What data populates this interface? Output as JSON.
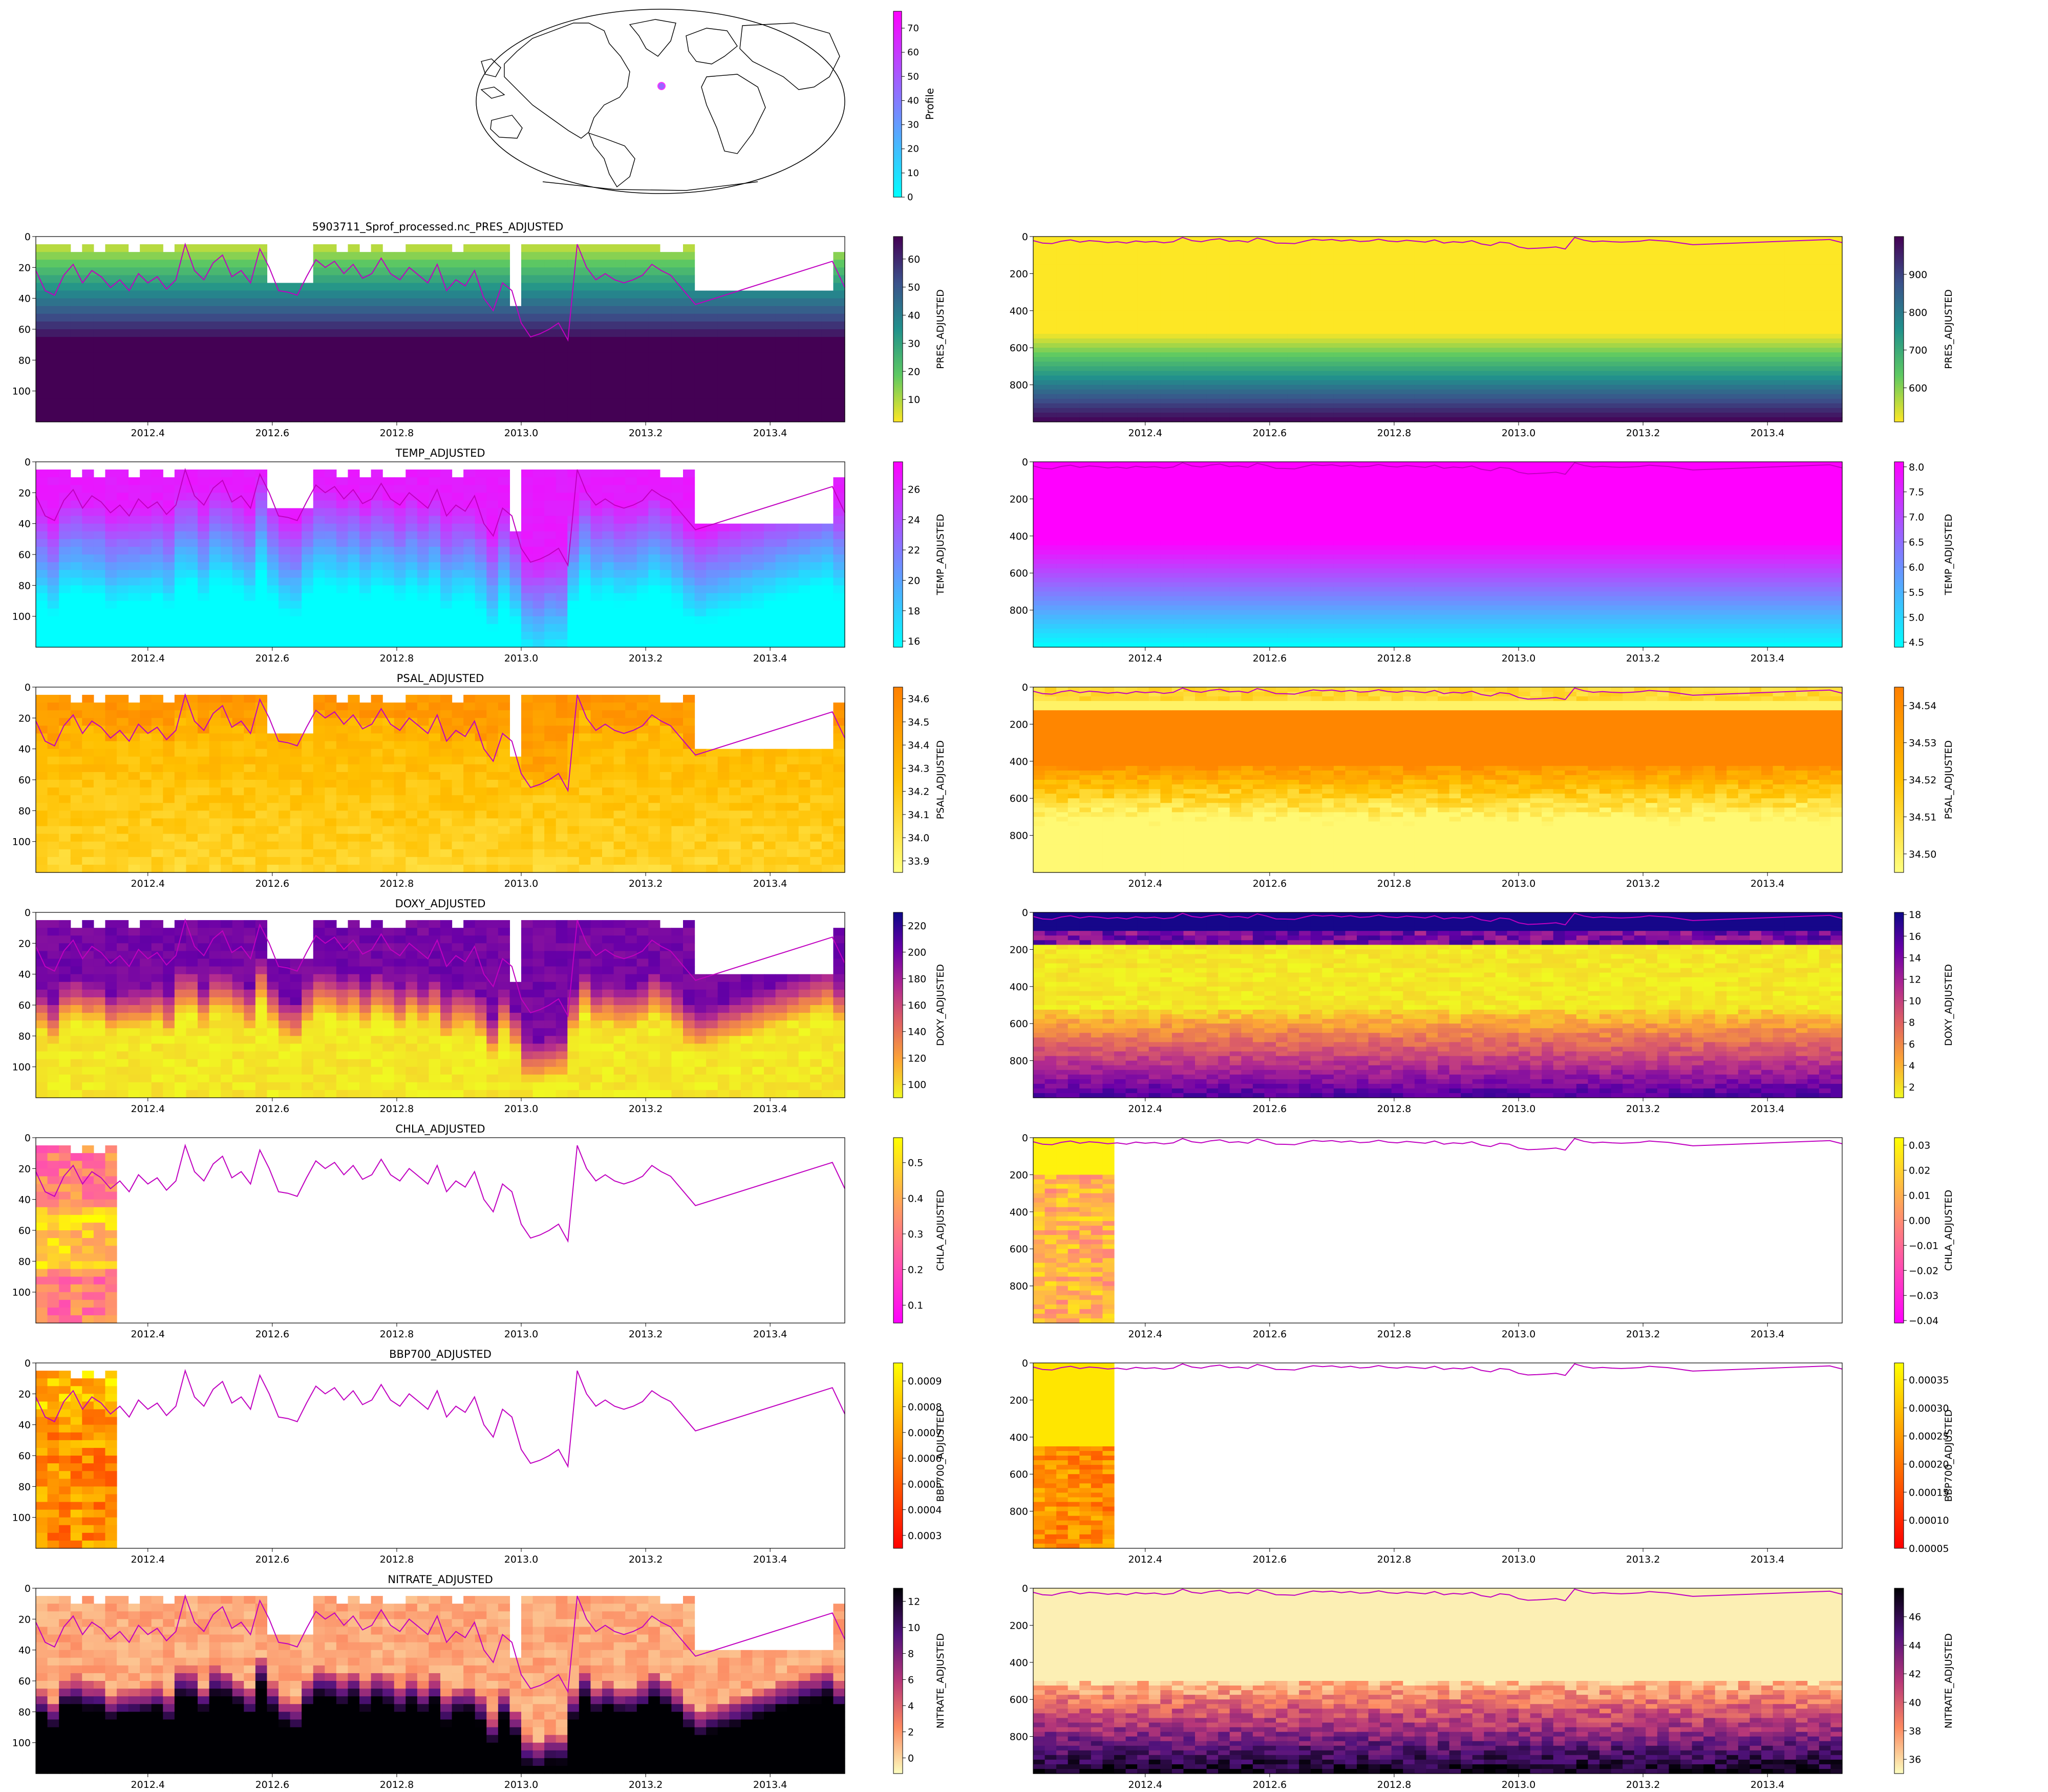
{
  "figure_title": "5903711_Sprof_processed.nc_PRES_ADJUSTED",
  "map": {
    "colorbar_label": "Profile",
    "colorbar_ticks": [
      0,
      10,
      20,
      30,
      40,
      50,
      60,
      70
    ],
    "colorbar_max": 77,
    "colorbar_colors": [
      "#00ffff",
      "#ff00ff"
    ],
    "float_location": {
      "lon": -171,
      "lat": 20
    }
  },
  "chart_data": [
    {
      "type": "heatmap",
      "title": "",
      "xlabel": "",
      "ylabel": "",
      "cbar_label": "PRES_ADJUSTED",
      "var": "PRES",
      "side": "left",
      "xlim": [
        2012.22,
        2013.52
      ],
      "ylim": [
        120,
        0
      ],
      "xticks": [
        "2012.4",
        "2012.6",
        "2012.8",
        "2013.0",
        "2013.2",
        "2013.4"
      ],
      "yticks": [
        "0",
        "20",
        "40",
        "60",
        "80",
        "100"
      ],
      "cbar_ticks": [
        "10",
        "20",
        "30",
        "40",
        "50",
        "60"
      ],
      "cbar_range": [
        2,
        68
      ],
      "colormap": [
        "#fde725",
        "#5ec962",
        "#21918c",
        "#3b528b",
        "#440154"
      ]
    },
    {
      "type": "heatmap",
      "title": "",
      "xlabel": "",
      "ylabel": "",
      "cbar_label": "PRES_ADJUSTED",
      "var": "PRES",
      "side": "right",
      "xlim": [
        2012.22,
        2013.52
      ],
      "ylim": [
        1000,
        0
      ],
      "xticks": [
        "2012.4",
        "2012.6",
        "2012.8",
        "2013.0",
        "2013.2",
        "2013.4"
      ],
      "yticks": [
        "0",
        "200",
        "400",
        "600",
        "800"
      ],
      "cbar_ticks": [
        "600",
        "700",
        "800",
        "900"
      ],
      "cbar_range": [
        510,
        1000
      ],
      "colormap": [
        "#fde725",
        "#5ec962",
        "#21918c",
        "#3b528b",
        "#440154"
      ]
    },
    {
      "type": "heatmap",
      "title": "TEMP_ADJUSTED",
      "xlabel": "",
      "ylabel": "",
      "cbar_label": "TEMP_ADJUSTED",
      "var": "TEMP",
      "side": "left",
      "xlim": [
        2012.22,
        2013.52
      ],
      "ylim": [
        120,
        0
      ],
      "xticks": [
        "2012.4",
        "2012.6",
        "2012.8",
        "2013.0",
        "2013.2",
        "2013.4"
      ],
      "yticks": [
        "0",
        "20",
        "40",
        "60",
        "80",
        "100"
      ],
      "cbar_ticks": [
        "16",
        "18",
        "20",
        "22",
        "24",
        "26"
      ],
      "cbar_range": [
        15.6,
        27.8
      ],
      "colormap": [
        "#00ffff",
        "#7f7fff",
        "#ff00ff"
      ]
    },
    {
      "type": "heatmap",
      "title": "",
      "xlabel": "",
      "ylabel": "",
      "cbar_label": "TEMP_ADJUSTED",
      "var": "TEMP",
      "side": "right",
      "xlim": [
        2012.22,
        2013.52
      ],
      "ylim": [
        1000,
        0
      ],
      "xticks": [
        "2012.4",
        "2012.6",
        "2012.8",
        "2013.0",
        "2013.2",
        "2013.4"
      ],
      "yticks": [
        "0",
        "200",
        "400",
        "600",
        "800"
      ],
      "cbar_ticks": [
        "4.5",
        "5.0",
        "5.5",
        "6.0",
        "6.5",
        "7.0",
        "7.5",
        "8.0"
      ],
      "cbar_range": [
        4.4,
        8.1
      ],
      "colormap": [
        "#00ffff",
        "#7f7fff",
        "#ff00ff"
      ]
    },
    {
      "type": "heatmap",
      "title": "PSAL_ADJUSTED",
      "xlabel": "",
      "ylabel": "",
      "cbar_label": "PSAL_ADJUSTED",
      "var": "PSAL",
      "side": "left",
      "xlim": [
        2012.22,
        2013.52
      ],
      "ylim": [
        120,
        0
      ],
      "xticks": [
        "2012.4",
        "2012.6",
        "2012.8",
        "2013.0",
        "2013.2",
        "2013.4"
      ],
      "yticks": [
        "0",
        "20",
        "40",
        "60",
        "80",
        "100"
      ],
      "cbar_ticks": [
        "33.9",
        "34.0",
        "34.1",
        "34.2",
        "34.3",
        "34.4",
        "34.5",
        "34.6"
      ],
      "cbar_range": [
        33.85,
        34.65
      ],
      "colormap": [
        "#ffff80",
        "#ffc000",
        "#ff8000"
      ]
    },
    {
      "type": "heatmap",
      "title": "",
      "xlabel": "",
      "ylabel": "",
      "cbar_label": "PSAL_ADJUSTED",
      "var": "PSAL",
      "side": "right",
      "xlim": [
        2012.22,
        2013.52
      ],
      "ylim": [
        1000,
        0
      ],
      "xticks": [
        "2012.4",
        "2012.6",
        "2012.8",
        "2013.0",
        "2013.2",
        "2013.4"
      ],
      "yticks": [
        "0",
        "200",
        "400",
        "600",
        "800"
      ],
      "cbar_ticks": [
        "34.50",
        "34.51",
        "34.52",
        "34.53",
        "34.54"
      ],
      "cbar_range": [
        34.495,
        34.545
      ],
      "colormap": [
        "#ffff80",
        "#ffc000",
        "#ff8000"
      ]
    },
    {
      "type": "heatmap",
      "title": "DOXY_ADJUSTED",
      "xlabel": "",
      "ylabel": "",
      "cbar_label": "DOXY_ADJUSTED",
      "var": "DOXY",
      "side": "left",
      "xlim": [
        2012.22,
        2013.52
      ],
      "ylim": [
        120,
        0
      ],
      "xticks": [
        "2012.4",
        "2012.6",
        "2012.8",
        "2013.0",
        "2013.2",
        "2013.4"
      ],
      "yticks": [
        "0",
        "20",
        "40",
        "60",
        "80",
        "100"
      ],
      "cbar_ticks": [
        "100",
        "120",
        "140",
        "160",
        "180",
        "200",
        "220"
      ],
      "cbar_range": [
        90,
        230
      ],
      "colormap": [
        "#f0f921",
        "#fca636",
        "#e16462",
        "#b12a90",
        "#6a00a8",
        "#0d0887"
      ]
    },
    {
      "type": "heatmap",
      "title": "",
      "xlabel": "",
      "ylabel": "",
      "cbar_label": "DOXY_ADJUSTED",
      "var": "DOXY",
      "side": "right",
      "xlim": [
        2012.22,
        2013.52
      ],
      "ylim": [
        1000,
        0
      ],
      "xticks": [
        "2012.4",
        "2012.6",
        "2012.8",
        "2013.0",
        "2013.2",
        "2013.4"
      ],
      "yticks": [
        "0",
        "200",
        "400",
        "600",
        "800"
      ],
      "cbar_ticks": [
        "2",
        "4",
        "6",
        "8",
        "10",
        "12",
        "14",
        "16",
        "18"
      ],
      "cbar_range": [
        1,
        18.2
      ],
      "colormap": [
        "#f0f921",
        "#fca636",
        "#e16462",
        "#b12a90",
        "#6a00a8",
        "#0d0887"
      ]
    },
    {
      "type": "heatmap",
      "title": "CHLA_ADJUSTED",
      "xlabel": "",
      "ylabel": "",
      "cbar_label": "CHLA_ADJUSTED",
      "var": "CHLA",
      "side": "left",
      "xlim": [
        2012.22,
        2013.52
      ],
      "ylim": [
        120,
        0
      ],
      "xticks": [
        "2012.4",
        "2012.6",
        "2012.8",
        "2013.0",
        "2013.2",
        "2013.4"
      ],
      "yticks": [
        "0",
        "20",
        "40",
        "60",
        "80",
        "100"
      ],
      "cbar_ticks": [
        "0.1",
        "0.2",
        "0.3",
        "0.4",
        "0.5"
      ],
      "cbar_range": [
        0.05,
        0.57
      ],
      "colormap": [
        "#ff00ff",
        "#ff7f7f",
        "#ffff00"
      ]
    },
    {
      "type": "heatmap",
      "title": "",
      "xlabel": "",
      "ylabel": "",
      "cbar_label": "CHLA_ADJUSTED",
      "var": "CHLA",
      "side": "right",
      "xlim": [
        2012.22,
        2013.52
      ],
      "ylim": [
        1000,
        0
      ],
      "xticks": [
        "2012.4",
        "2012.6",
        "2012.8",
        "2013.0",
        "2013.2",
        "2013.4"
      ],
      "yticks": [
        "0",
        "200",
        "400",
        "600",
        "800"
      ],
      "cbar_ticks": [
        "−0.04",
        "−0.03",
        "−0.02",
        "−0.01",
        "0.00",
        "0.01",
        "0.02",
        "0.03"
      ],
      "cbar_range": [
        -0.041,
        0.033
      ],
      "colormap": [
        "#ff00ff",
        "#ff7f7f",
        "#ffff00"
      ]
    },
    {
      "type": "heatmap",
      "title": "BBP700_ADJUSTED",
      "xlabel": "",
      "ylabel": "",
      "cbar_label": "BBP700_ADJUSTED",
      "var": "BBP",
      "side": "left",
      "xlim": [
        2012.22,
        2013.52
      ],
      "ylim": [
        120,
        0
      ],
      "xticks": [
        "2012.4",
        "2012.6",
        "2012.8",
        "2013.0",
        "2013.2",
        "2013.4"
      ],
      "yticks": [
        "0",
        "20",
        "40",
        "60",
        "80",
        "100"
      ],
      "cbar_ticks": [
        "0.0003",
        "0.0004",
        "0.0005",
        "0.0006",
        "0.0007",
        "0.0008",
        "0.0009"
      ],
      "cbar_range": [
        0.00025,
        0.00097
      ],
      "colormap": [
        "#ff0000",
        "#ff8000",
        "#ffff00"
      ]
    },
    {
      "type": "heatmap",
      "title": "",
      "xlabel": "",
      "ylabel": "",
      "cbar_label": "BBP700_ADJUSTED",
      "var": "BBP",
      "side": "right",
      "xlim": [
        2012.22,
        2013.52
      ],
      "ylim": [
        1000,
        0
      ],
      "xticks": [
        "2012.4",
        "2012.6",
        "2012.8",
        "2013.0",
        "2013.2",
        "2013.4"
      ],
      "yticks": [
        "0",
        "200",
        "400",
        "600",
        "800"
      ],
      "cbar_ticks": [
        "0.00005",
        "0.00010",
        "0.00015",
        "0.00020",
        "0.00025",
        "0.00030",
        "0.00035"
      ],
      "cbar_range": [
        5e-05,
        0.00038
      ],
      "colormap": [
        "#ff0000",
        "#ff8000",
        "#ffff00"
      ]
    },
    {
      "type": "heatmap",
      "title": "NITRATE_ADJUSTED",
      "xlabel": "",
      "ylabel": "",
      "cbar_label": "NITRATE_ADJUSTED",
      "var": "NITRATE",
      "side": "left",
      "xlim": [
        2012.22,
        2013.52
      ],
      "ylim": [
        120,
        0
      ],
      "xticks": [
        "2012.4",
        "2012.6",
        "2012.8",
        "2013.0",
        "2013.2",
        "2013.4"
      ],
      "yticks": [
        "0",
        "20",
        "40",
        "60",
        "80",
        "100"
      ],
      "cbar_ticks": [
        "0",
        "2",
        "4",
        "6",
        "8",
        "10",
        "12"
      ],
      "cbar_range": [
        -1.2,
        13
      ],
      "colormap": [
        "#fcfdbf",
        "#fc8961",
        "#b73779",
        "#51127c",
        "#000004"
      ]
    },
    {
      "type": "heatmap",
      "title": "",
      "xlabel": "",
      "ylabel": "",
      "cbar_label": "NITRATE_ADJUSTED",
      "var": "NITRATE",
      "side": "right",
      "xlim": [
        2012.22,
        2013.52
      ],
      "ylim": [
        1000,
        0
      ],
      "xticks": [
        "2012.4",
        "2012.6",
        "2012.8",
        "2013.0",
        "2013.2",
        "2013.4"
      ],
      "yticks": [
        "0",
        "200",
        "400",
        "600",
        "800"
      ],
      "cbar_ticks": [
        "36",
        "38",
        "40",
        "42",
        "44",
        "46"
      ],
      "cbar_range": [
        35,
        48
      ],
      "colormap": [
        "#fcfdbf",
        "#fc8961",
        "#b73779",
        "#51127c",
        "#000004"
      ]
    }
  ],
  "mld_series": {
    "type": "line",
    "color": "#c000c0",
    "x": [
      2012.22,
      2012.235,
      2012.25,
      2012.265,
      2012.28,
      2012.295,
      2012.31,
      2012.325,
      2012.34,
      2012.355,
      2012.37,
      2012.385,
      2012.4,
      2012.415,
      2012.43,
      2012.445,
      2012.46,
      2012.475,
      2012.49,
      2012.505,
      2012.52,
      2012.535,
      2012.55,
      2012.565,
      2012.58,
      2012.595,
      2012.61,
      2012.625,
      2012.64,
      2012.655,
      2012.67,
      2012.685,
      2012.7,
      2012.715,
      2012.73,
      2012.745,
      2012.76,
      2012.775,
      2012.79,
      2012.805,
      2012.82,
      2012.835,
      2012.85,
      2012.865,
      2012.88,
      2012.895,
      2012.91,
      2012.925,
      2012.94,
      2012.955,
      2012.97,
      2012.985,
      2013.0,
      2013.015,
      2013.03,
      2013.045,
      2013.06,
      2013.075,
      2013.09,
      2013.105,
      2013.12,
      2013.135,
      2013.15,
      2013.165,
      2013.18,
      2013.195,
      2013.21,
      2013.225,
      2013.24,
      2013.28,
      2013.5,
      2013.52
    ],
    "y": [
      22,
      35,
      38,
      25,
      18,
      30,
      22,
      26,
      33,
      28,
      35,
      24,
      30,
      26,
      34,
      28,
      5,
      22,
      28,
      17,
      12,
      26,
      22,
      30,
      8,
      20,
      35,
      36,
      38,
      26,
      15,
      20,
      16,
      24,
      18,
      27,
      24,
      14,
      24,
      28,
      20,
      25,
      30,
      18,
      35,
      28,
      32,
      22,
      40,
      48,
      30,
      35,
      56,
      65,
      63,
      60,
      56,
      67,
      5,
      20,
      28,
      24,
      28,
      30,
      28,
      25,
      18,
      22,
      25,
      44,
      16,
      33
    ]
  }
}
